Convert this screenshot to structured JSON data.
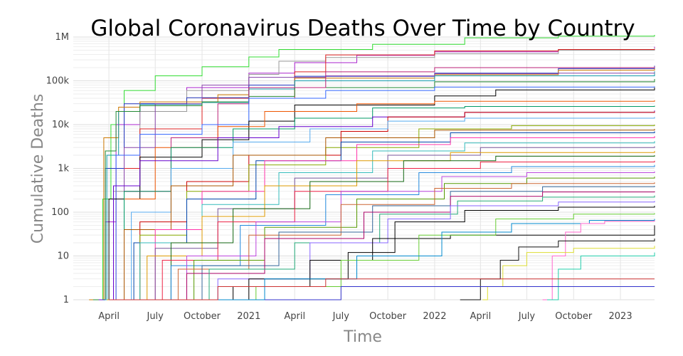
{
  "chart_data": {
    "type": "line",
    "title": "Global Coronavirus Deaths Over Time by Country",
    "xlabel": "Time",
    "ylabel": "Cumulative Deaths",
    "y_scale": "log",
    "ylim": [
      1,
      1000000
    ],
    "xlim": [
      "2020-01-22",
      "2023-03-09"
    ],
    "y_ticks": [
      {
        "value": 1,
        "label": "1"
      },
      {
        "value": 10,
        "label": "10"
      },
      {
        "value": 100,
        "label": "100"
      },
      {
        "value": 1000,
        "label": "1k"
      },
      {
        "value": 10000,
        "label": "10k"
      },
      {
        "value": 100000,
        "label": "100k"
      },
      {
        "value": 1000000,
        "label": "1M"
      }
    ],
    "x_ticks": [
      {
        "value": "2020-04-01",
        "label": "April"
      },
      {
        "value": "2020-07-01",
        "label": "July"
      },
      {
        "value": "2020-10-01",
        "label": "October"
      },
      {
        "value": "2021-01-01",
        "label": "2021"
      },
      {
        "value": "2021-04-01",
        "label": "April"
      },
      {
        "value": "2021-07-01",
        "label": "July"
      },
      {
        "value": "2021-10-01",
        "label": "October"
      },
      {
        "value": "2022-01-01",
        "label": "2022"
      },
      {
        "value": "2022-04-01",
        "label": "April"
      },
      {
        "value": "2022-07-01",
        "label": "July"
      },
      {
        "value": "2022-10-01",
        "label": "October"
      },
      {
        "value": "2023-01-01",
        "label": "2023"
      }
    ],
    "grid": true,
    "legend": "none",
    "series_count_approx": 200,
    "series": [
      {
        "color": "#33dd33",
        "x": [
          "2020-02-29",
          "2020-03-20",
          "2020-04-05",
          "2020-05-01",
          "2020-07-01",
          "2020-10-01",
          "2021-01-01",
          "2021-03-01",
          "2021-09-01",
          "2022-03-01",
          "2022-09-01",
          "2023-03-09"
        ],
        "y": [
          1,
          200,
          10000,
          60000,
          130000,
          210000,
          350000,
          520000,
          680000,
          960000,
          1050000,
          1120000
        ]
      },
      {
        "color": "#aa22cc",
        "x": [
          "2020-03-01",
          "2020-03-25",
          "2020-04-15",
          "2020-06-01",
          "2020-09-01",
          "2021-01-01",
          "2021-04-01",
          "2021-08-01",
          "2022-01-01",
          "2022-09-01",
          "2023-03-09"
        ],
        "y": [
          1,
          60,
          10000,
          30000,
          70000,
          150000,
          260000,
          380000,
          460000,
          520000,
          600000
        ]
      },
      {
        "color": "#999999",
        "x": [
          "2020-03-10",
          "2020-04-10",
          "2020-06-01",
          "2020-09-01",
          "2021-01-01",
          "2021-03-01",
          "2021-06-01",
          "2022-01-01",
          "2022-09-01",
          "2023-03-09"
        ],
        "y": [
          1,
          300,
          20000,
          60000,
          140000,
          280000,
          340000,
          420000,
          500000,
          560000
        ]
      },
      {
        "color": "#dd2222",
        "x": [
          "2020-03-10",
          "2020-04-15",
          "2020-06-01",
          "2020-10-01",
          "2021-04-01",
          "2021-06-01",
          "2022-01-01",
          "2022-09-01",
          "2023-03-09"
        ],
        "y": [
          1,
          1000,
          8000,
          40000,
          160000,
          390000,
          480000,
          520000,
          530000
        ]
      },
      {
        "color": "#2233bb",
        "x": [
          "2020-03-01",
          "2020-03-25",
          "2020-05-01",
          "2020-09-01",
          "2021-01-01",
          "2021-04-01",
          "2022-01-01",
          "2022-09-01",
          "2023-03-09"
        ],
        "y": [
          1,
          1000,
          30000,
          41000,
          80000,
          127000,
          150000,
          190000,
          220000
        ]
      },
      {
        "color": "#cc7700",
        "x": [
          "2020-02-22",
          "2020-03-22",
          "2020-04-20",
          "2020-06-01",
          "2020-11-01",
          "2021-01-01",
          "2021-04-01",
          "2022-01-01",
          "2022-09-01",
          "2023-03-09"
        ],
        "y": [
          1,
          5000,
          25000,
          33000,
          48000,
          70000,
          115000,
          138000,
          175000,
          188000
        ]
      },
      {
        "color": "#1199aa",
        "x": [
          "2020-03-05",
          "2020-03-28",
          "2020-04-20",
          "2020-06-01",
          "2020-10-01",
          "2021-01-01",
          "2021-04-01",
          "2022-01-01",
          "2023-03-09"
        ],
        "y": [
          1,
          2000,
          20000,
          29000,
          32000,
          65000,
          100000,
          130000,
          165000
        ]
      },
      {
        "color": "#8844aa",
        "x": [
          "2020-03-20",
          "2020-05-01",
          "2020-07-01",
          "2020-10-01",
          "2021-01-01",
          "2021-06-01",
          "2022-01-01",
          "2022-09-01",
          "2023-03-09"
        ],
        "y": [
          1,
          3000,
          30000,
          80000,
          120000,
          130000,
          145000,
          150000,
          153000
        ]
      },
      {
        "color": "#228833",
        "x": [
          "2020-03-01",
          "2020-03-25",
          "2020-04-15",
          "2020-06-01",
          "2020-10-01",
          "2021-01-01",
          "2021-04-01",
          "2022-01-01",
          "2023-03-09"
        ],
        "y": [
          1,
          2500,
          20000,
          27000,
          33000,
          44000,
          70000,
          95000,
          110000
        ]
      },
      {
        "color": "#bb2277",
        "x": [
          "2020-03-22",
          "2020-05-01",
          "2020-08-01",
          "2020-11-01",
          "2021-01-01",
          "2021-06-01",
          "2022-01-01",
          "2023-03-09"
        ],
        "y": [
          1,
          300,
          5000,
          30000,
          70000,
          160000,
          200000,
          210000
        ]
      },
      {
        "color": "#3366ff",
        "x": [
          "2020-03-15",
          "2020-04-15",
          "2020-06-01",
          "2020-10-01",
          "2021-01-01",
          "2021-06-01",
          "2022-01-01",
          "2023-03-09"
        ],
        "y": [
          1,
          2000,
          6000,
          10000,
          40000,
          60000,
          72000,
          75000
        ]
      },
      {
        "color": "#000000",
        "x": [
          "2020-03-15",
          "2020-04-01",
          "2020-06-01",
          "2020-10-01",
          "2021-01-01",
          "2021-04-01",
          "2022-01-01",
          "2022-05-01",
          "2023-03-09"
        ],
        "y": [
          1,
          200,
          1800,
          4500,
          12000,
          28000,
          45000,
          62000,
          70000
        ]
      },
      {
        "color": "#ee5500",
        "x": [
          "2020-03-20",
          "2020-05-01",
          "2020-07-01",
          "2020-11-01",
          "2021-02-01",
          "2021-08-01",
          "2022-01-01",
          "2023-03-09"
        ],
        "y": [
          1,
          200,
          3000,
          9000,
          20000,
          30000,
          34000,
          36000
        ]
      },
      {
        "color": "#009966",
        "x": [
          "2020-03-18",
          "2020-05-01",
          "2020-08-01",
          "2020-12-01",
          "2021-04-01",
          "2021-09-01",
          "2022-03-01",
          "2023-03-09"
        ],
        "y": [
          1,
          300,
          3000,
          8000,
          14000,
          24000,
          26000,
          27000
        ]
      },
      {
        "color": "#6600cc",
        "x": [
          "2020-03-12",
          "2020-04-10",
          "2020-06-01",
          "2020-11-01",
          "2021-03-01",
          "2021-09-01",
          "2022-03-01",
          "2023-03-09"
        ],
        "y": [
          1,
          400,
          1500,
          5000,
          9000,
          15000,
          19000,
          21000
        ]
      },
      {
        "color": "#cc0000",
        "x": [
          "2020-03-25",
          "2020-06-01",
          "2020-09-01",
          "2021-01-01",
          "2021-07-01",
          "2021-10-01",
          "2022-03-01",
          "2023-03-09"
        ],
        "y": [
          1,
          60,
          500,
          2000,
          7000,
          15000,
          19000,
          20000
        ]
      },
      {
        "color": "#55aaee",
        "x": [
          "2020-03-20",
          "2020-05-15",
          "2020-08-01",
          "2020-12-01",
          "2021-05-01",
          "2021-10-01",
          "2022-03-01",
          "2023-03-09"
        ],
        "y": [
          1,
          100,
          1000,
          4000,
          8000,
          12000,
          14000,
          15000
        ]
      },
      {
        "color": "#88aa00",
        "x": [
          "2020-03-25",
          "2020-06-01",
          "2020-09-01",
          "2021-01-01",
          "2021-06-01",
          "2021-12-01",
          "2022-06-01",
          "2023-03-09"
        ],
        "y": [
          1,
          30,
          300,
          1200,
          3000,
          8000,
          9500,
          10000
        ]
      },
      {
        "color": "#aa5500",
        "x": [
          "2020-03-22",
          "2020-05-01",
          "2020-08-01",
          "2020-12-01",
          "2021-06-01",
          "2022-01-01",
          "2023-03-09"
        ],
        "y": [
          1,
          40,
          400,
          2000,
          5000,
          7500,
          8000
        ]
      },
      {
        "color": "#0044aa",
        "x": [
          "2020-03-20",
          "2020-05-20",
          "2020-09-01",
          "2021-01-15",
          "2021-07-01",
          "2022-02-01",
          "2023-03-09"
        ],
        "y": [
          1,
          20,
          200,
          1500,
          4000,
          6500,
          7000
        ]
      },
      {
        "color": "#ff33aa",
        "x": [
          "2020-04-01",
          "2020-07-01",
          "2020-10-01",
          "2021-02-01",
          "2021-08-01",
          "2022-02-01",
          "2023-03-09"
        ],
        "y": [
          1,
          40,
          300,
          1500,
          3500,
          5000,
          5500
        ]
      },
      {
        "color": "#33bbbb",
        "x": [
          "2020-03-25",
          "2020-06-01",
          "2020-10-01",
          "2021-03-01",
          "2021-09-01",
          "2022-03-01",
          "2023-03-09"
        ],
        "y": [
          1,
          20,
          150,
          800,
          2500,
          3800,
          4200
        ]
      },
      {
        "color": "#775599",
        "x": [
          "2020-04-05",
          "2020-07-01",
          "2020-11-01",
          "2021-04-01",
          "2021-10-01",
          "2022-04-01",
          "2023-03-09"
        ],
        "y": [
          1,
          15,
          120,
          600,
          2000,
          3000,
          3200
        ]
      },
      {
        "color": "#dd9900",
        "x": [
          "2020-03-28",
          "2020-06-15",
          "2020-10-01",
          "2021-02-01",
          "2021-08-01",
          "2022-02-01",
          "2023-03-09"
        ],
        "y": [
          1,
          10,
          80,
          400,
          1500,
          2300,
          2500
        ]
      },
      {
        "color": "#116611",
        "x": [
          "2020-04-10",
          "2020-08-01",
          "2020-12-01",
          "2021-05-01",
          "2021-11-01",
          "2022-05-01",
          "2023-03-09"
        ],
        "y": [
          1,
          20,
          120,
          500,
          1500,
          1900,
          2000
        ]
      },
      {
        "color": "#ee2244",
        "x": [
          "2020-04-01",
          "2020-07-15",
          "2020-11-01",
          "2021-04-01",
          "2021-10-01",
          "2022-04-01",
          "2023-03-09"
        ],
        "y": [
          1,
          8,
          60,
          300,
          1000,
          1400,
          1500
        ]
      },
      {
        "color": "#2288dd",
        "x": [
          "2020-04-15",
          "2020-08-01",
          "2020-12-15",
          "2021-06-01",
          "2021-12-01",
          "2022-06-01",
          "2023-03-09"
        ],
        "y": [
          1,
          6,
          50,
          250,
          800,
          1100,
          1200
        ]
      },
      {
        "color": "#bb44dd",
        "x": [
          "2020-04-20",
          "2020-09-01",
          "2021-01-15",
          "2021-07-01",
          "2022-01-15",
          "2022-07-01",
          "2023-03-09"
        ],
        "y": [
          1,
          10,
          60,
          300,
          650,
          800,
          850
        ]
      },
      {
        "color": "#559900",
        "x": [
          "2020-05-01",
          "2020-09-15",
          "2021-02-01",
          "2021-08-01",
          "2022-01-20",
          "2022-07-01",
          "2023-03-09"
        ],
        "y": [
          1,
          8,
          45,
          200,
          450,
          600,
          650
        ]
      },
      {
        "color": "#cc6633",
        "x": [
          "2020-04-10",
          "2020-08-15",
          "2021-01-01",
          "2021-07-01",
          "2022-01-01",
          "2022-06-01",
          "2023-03-09"
        ],
        "y": [
          1,
          5,
          30,
          150,
          350,
          450,
          480
        ]
      },
      {
        "color": "#336699",
        "x": [
          "2020-05-15",
          "2020-10-01",
          "2021-03-01",
          "2021-09-01",
          "2022-02-01",
          "2022-08-01",
          "2023-03-09"
        ],
        "y": [
          1,
          6,
          35,
          140,
          300,
          380,
          400
        ]
      },
      {
        "color": "#aa0066",
        "x": [
          "2020-04-25",
          "2020-09-01",
          "2021-02-01",
          "2021-08-15",
          "2022-02-01",
          "2022-08-01",
          "2023-03-09"
        ],
        "y": [
          1,
          4,
          25,
          100,
          230,
          290,
          300
        ]
      },
      {
        "color": "#22aa77",
        "x": [
          "2020-05-20",
          "2020-10-15",
          "2021-04-01",
          "2021-09-15",
          "2022-02-15",
          "2022-08-01",
          "2023-03-09"
        ],
        "y": [
          1,
          5,
          20,
          90,
          180,
          220,
          240
        ]
      },
      {
        "color": "#8866ff",
        "x": [
          "2020-06-01",
          "2020-11-01",
          "2021-05-01",
          "2021-10-01",
          "2022-02-01",
          "2022-09-01",
          "2023-03-09"
        ],
        "y": [
          1,
          3,
          20,
          70,
          140,
          170,
          180
        ]
      },
      {
        "color": "#000000",
        "x": [
          "2020-06-15",
          "2021-01-01",
          "2021-07-15",
          "2021-10-15",
          "2022-03-01",
          "2022-09-01",
          "2023-03-09"
        ],
        "y": [
          1,
          3,
          12,
          60,
          110,
          130,
          140
        ]
      },
      {
        "color": "#000000",
        "x": [
          "2020-05-15",
          "2020-12-01",
          "2021-05-01",
          "2021-09-01",
          "2022-02-01",
          "2022-07-01",
          "2023-03-09"
        ],
        "y": [
          1,
          2,
          8,
          25,
          30,
          30,
          50
        ]
      },
      {
        "color": "#66cc33",
        "x": [
          "2020-07-01",
          "2021-01-15",
          "2021-07-01",
          "2021-12-01",
          "2022-05-01",
          "2022-10-01",
          "2023-03-09"
        ],
        "y": [
          1,
          2,
          8,
          30,
          70,
          90,
          95
        ]
      },
      {
        "color": "#0088cc",
        "x": [
          "2020-08-01",
          "2021-02-01",
          "2021-08-01",
          "2022-01-15",
          "2022-06-01",
          "2022-11-01",
          "2023-03-09"
        ],
        "y": [
          1,
          3,
          10,
          35,
          55,
          65,
          70
        ]
      },
      {
        "color": "#ff66cc",
        "x": [
          "2022-08-01",
          "2022-08-20",
          "2022-09-15",
          "2022-10-15",
          "2022-12-01",
          "2023-03-09"
        ],
        "y": [
          1,
          10,
          35,
          55,
          62,
          65
        ]
      },
      {
        "color": "#dddd33",
        "x": [
          "2022-04-05",
          "2022-04-15",
          "2022-05-15",
          "2022-07-01",
          "2022-10-01",
          "2023-03-09"
        ],
        "y": [
          1,
          2,
          6,
          12,
          15,
          17
        ]
      },
      {
        "color": "#22ccaa",
        "x": [
          "2022-08-10",
          "2022-09-01",
          "2022-10-15",
          "2023-03-09"
        ],
        "y": [
          1,
          5,
          10,
          12
        ]
      },
      {
        "color": "#111111",
        "x": [
          "2022-02-20",
          "2022-04-01",
          "2022-05-10",
          "2022-06-15",
          "2022-09-01",
          "2023-03-09"
        ],
        "y": [
          1,
          3,
          8,
          16,
          22,
          25
        ]
      },
      {
        "color": "#cc3333",
        "x": [
          "2020-04-01",
          "2020-11-01",
          "2021-06-01",
          "2022-01-01",
          "2023-03-09"
        ],
        "y": [
          1,
          2,
          3,
          3,
          3
        ]
      },
      {
        "color": "#3333cc",
        "x": [
          "2021-02-01",
          "2021-07-01",
          "2022-03-01",
          "2023-03-09"
        ],
        "y": [
          1,
          2,
          2,
          2
        ]
      }
    ]
  }
}
